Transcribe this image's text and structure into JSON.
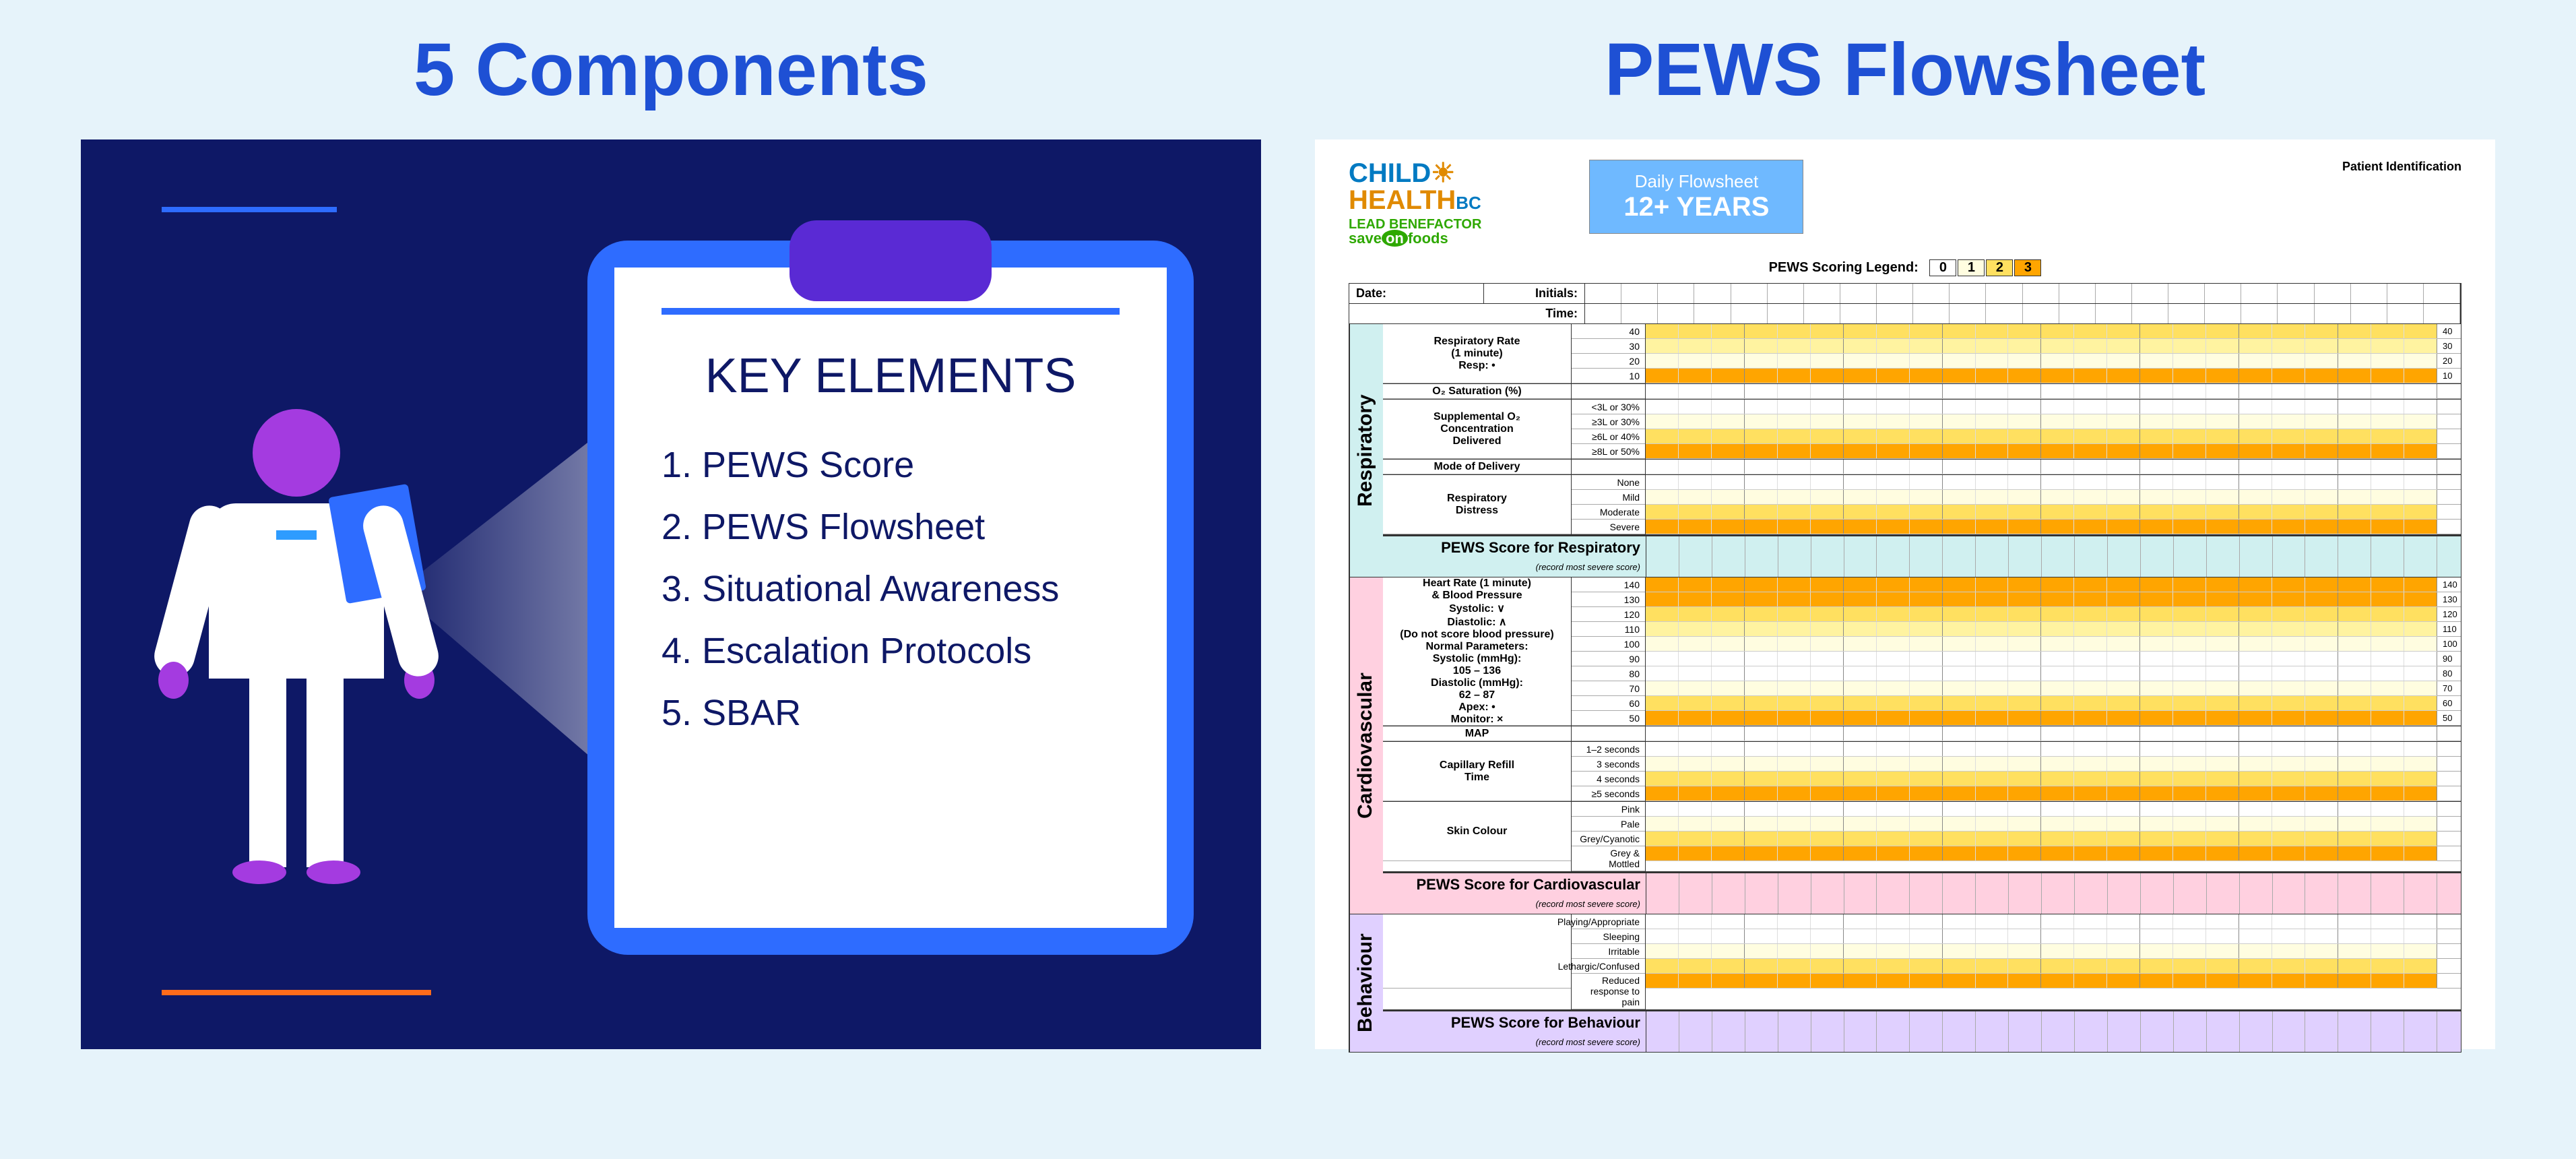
{
  "left": {
    "title": "5 Components",
    "title_color": "#1e50d4",
    "panel_bg": "#0e1866",
    "clipboard_color": "#2e6cff",
    "clip_top_color": "#5a2ad4",
    "person_accent": "#a43be0",
    "key_elements_title": "KEY ELEMENTS",
    "items": [
      "1. PEWS Score",
      "2. PEWS Flowsheet",
      "3. Situational Awareness",
      "4. Escalation Protocols",
      "5. SBAR"
    ],
    "accent_blue": "#2e6cff",
    "accent_orange": "#ff6b1a"
  },
  "right": {
    "title": "PEWS  Flowsheet",
    "title_color": "#1e50d4",
    "logo": {
      "line1a": "CHILD",
      "line2a": "HEALTH",
      "line2b": "BC",
      "sun": "☀",
      "lead": "LEAD BENEFACTOR",
      "sof_a": "save",
      "sof_b": "on",
      "sof_c": "foods"
    },
    "patient_id": "Patient Identification",
    "title_box": {
      "line1": "Daily Flowsheet",
      "line2": "12+ YEARS",
      "bg": "#6fb9ff"
    },
    "legend_label": "PEWS Scoring Legend:",
    "legend": [
      {
        "v": "0",
        "c": "#ffffff"
      },
      {
        "v": "1",
        "c": "#fffde0"
      },
      {
        "v": "2",
        "c": "#ffe060"
      },
      {
        "v": "3",
        "c": "#ffa500"
      }
    ],
    "colors": {
      "c0": "#ffffff",
      "c1": "#fffde0",
      "c15": "#fff3a0",
      "c2": "#ffe060",
      "c3": "#ffa500"
    },
    "meta": {
      "date": "Date:",
      "initials": "Initials:",
      "time": "Time:"
    },
    "columns": 24,
    "respiratory": {
      "tab": "Respiratory",
      "tab_bg": "#d0f0f0",
      "rows": [
        {
          "label": "Respiratory Rate\n(1 minute)\nResp: •",
          "ticks": [
            "40",
            "30",
            "20",
            "10"
          ],
          "bands": [
            "c2",
            "c15",
            "c1",
            "c3"
          ]
        },
        {
          "label": "O₂ Saturation (%)",
          "ticks": [
            ""
          ],
          "bands": [
            "c0"
          ]
        },
        {
          "label": "Supplemental O₂\nConcentration\nDelivered",
          "ticks": [
            "<3L or 30%",
            "≥3L or 30%",
            "≥6L or 40%",
            "≥8L or 50%"
          ],
          "bands": [
            "c0",
            "c1",
            "c2",
            "c3"
          ]
        },
        {
          "label": "Mode of Delivery",
          "ticks": [
            ""
          ],
          "bands": [
            "c0"
          ]
        },
        {
          "label": "Respiratory\nDistress",
          "ticks": [
            "None",
            "Mild",
            "Moderate",
            "Severe"
          ],
          "bands": [
            "c0",
            "c1",
            "c2",
            "c3"
          ]
        }
      ],
      "score": "PEWS Score for Respiratory",
      "score_note": "(record most severe score)"
    },
    "cardiovascular": {
      "tab": "Cardiovascular",
      "tab_bg": "#ffd0e0",
      "rows": [
        {
          "label": "Heart Rate (1 minute)\n& Blood Pressure\nSystolic: ∨\nDiastolic: ∧\n(Do not score blood pressure)\nNormal Parameters:\nSystolic (mmHg):\n105 – 136\nDiastolic (mmHg):\n62 – 87\nApex: •\nMonitor: ×",
          "ticks": [
            "140",
            "130",
            "120",
            "110",
            "100",
            "90",
            "80",
            "70",
            "60",
            "50"
          ],
          "bands": [
            "c3",
            "c3",
            "c2",
            "c15",
            "c1",
            "c0",
            "c0",
            "c1",
            "c2",
            "c3"
          ]
        },
        {
          "label": "MAP",
          "ticks": [
            ""
          ],
          "bands": [
            "c0"
          ]
        },
        {
          "label": "Capillary Refill\nTime",
          "ticks": [
            "1–2 seconds",
            "3 seconds",
            "4 seconds",
            "≥5 seconds"
          ],
          "bands": [
            "c0",
            "c1",
            "c2",
            "c3"
          ]
        },
        {
          "label": "Skin Colour",
          "ticks": [
            "Pink",
            "Pale",
            "Grey/Cyanotic",
            "Grey & Mottled"
          ],
          "bands": [
            "c0",
            "c1",
            "c2",
            "c3"
          ]
        }
      ],
      "score": "PEWS Score for Cardiovascular",
      "score_note": "(record most severe score)"
    },
    "behaviour": {
      "tab": "Behaviour",
      "tab_bg": "#e0d0ff",
      "rows": [
        {
          "label": "",
          "ticks": [
            "Playing/Appropriate",
            "Sleeping",
            "Irritable",
            "Lethargic/Confused",
            "Reduced response to pain"
          ],
          "bands": [
            "c0",
            "c0",
            "c1",
            "c2",
            "c3"
          ]
        }
      ],
      "score": "PEWS Score for Behaviour",
      "score_note": "(record most severe score)"
    }
  }
}
